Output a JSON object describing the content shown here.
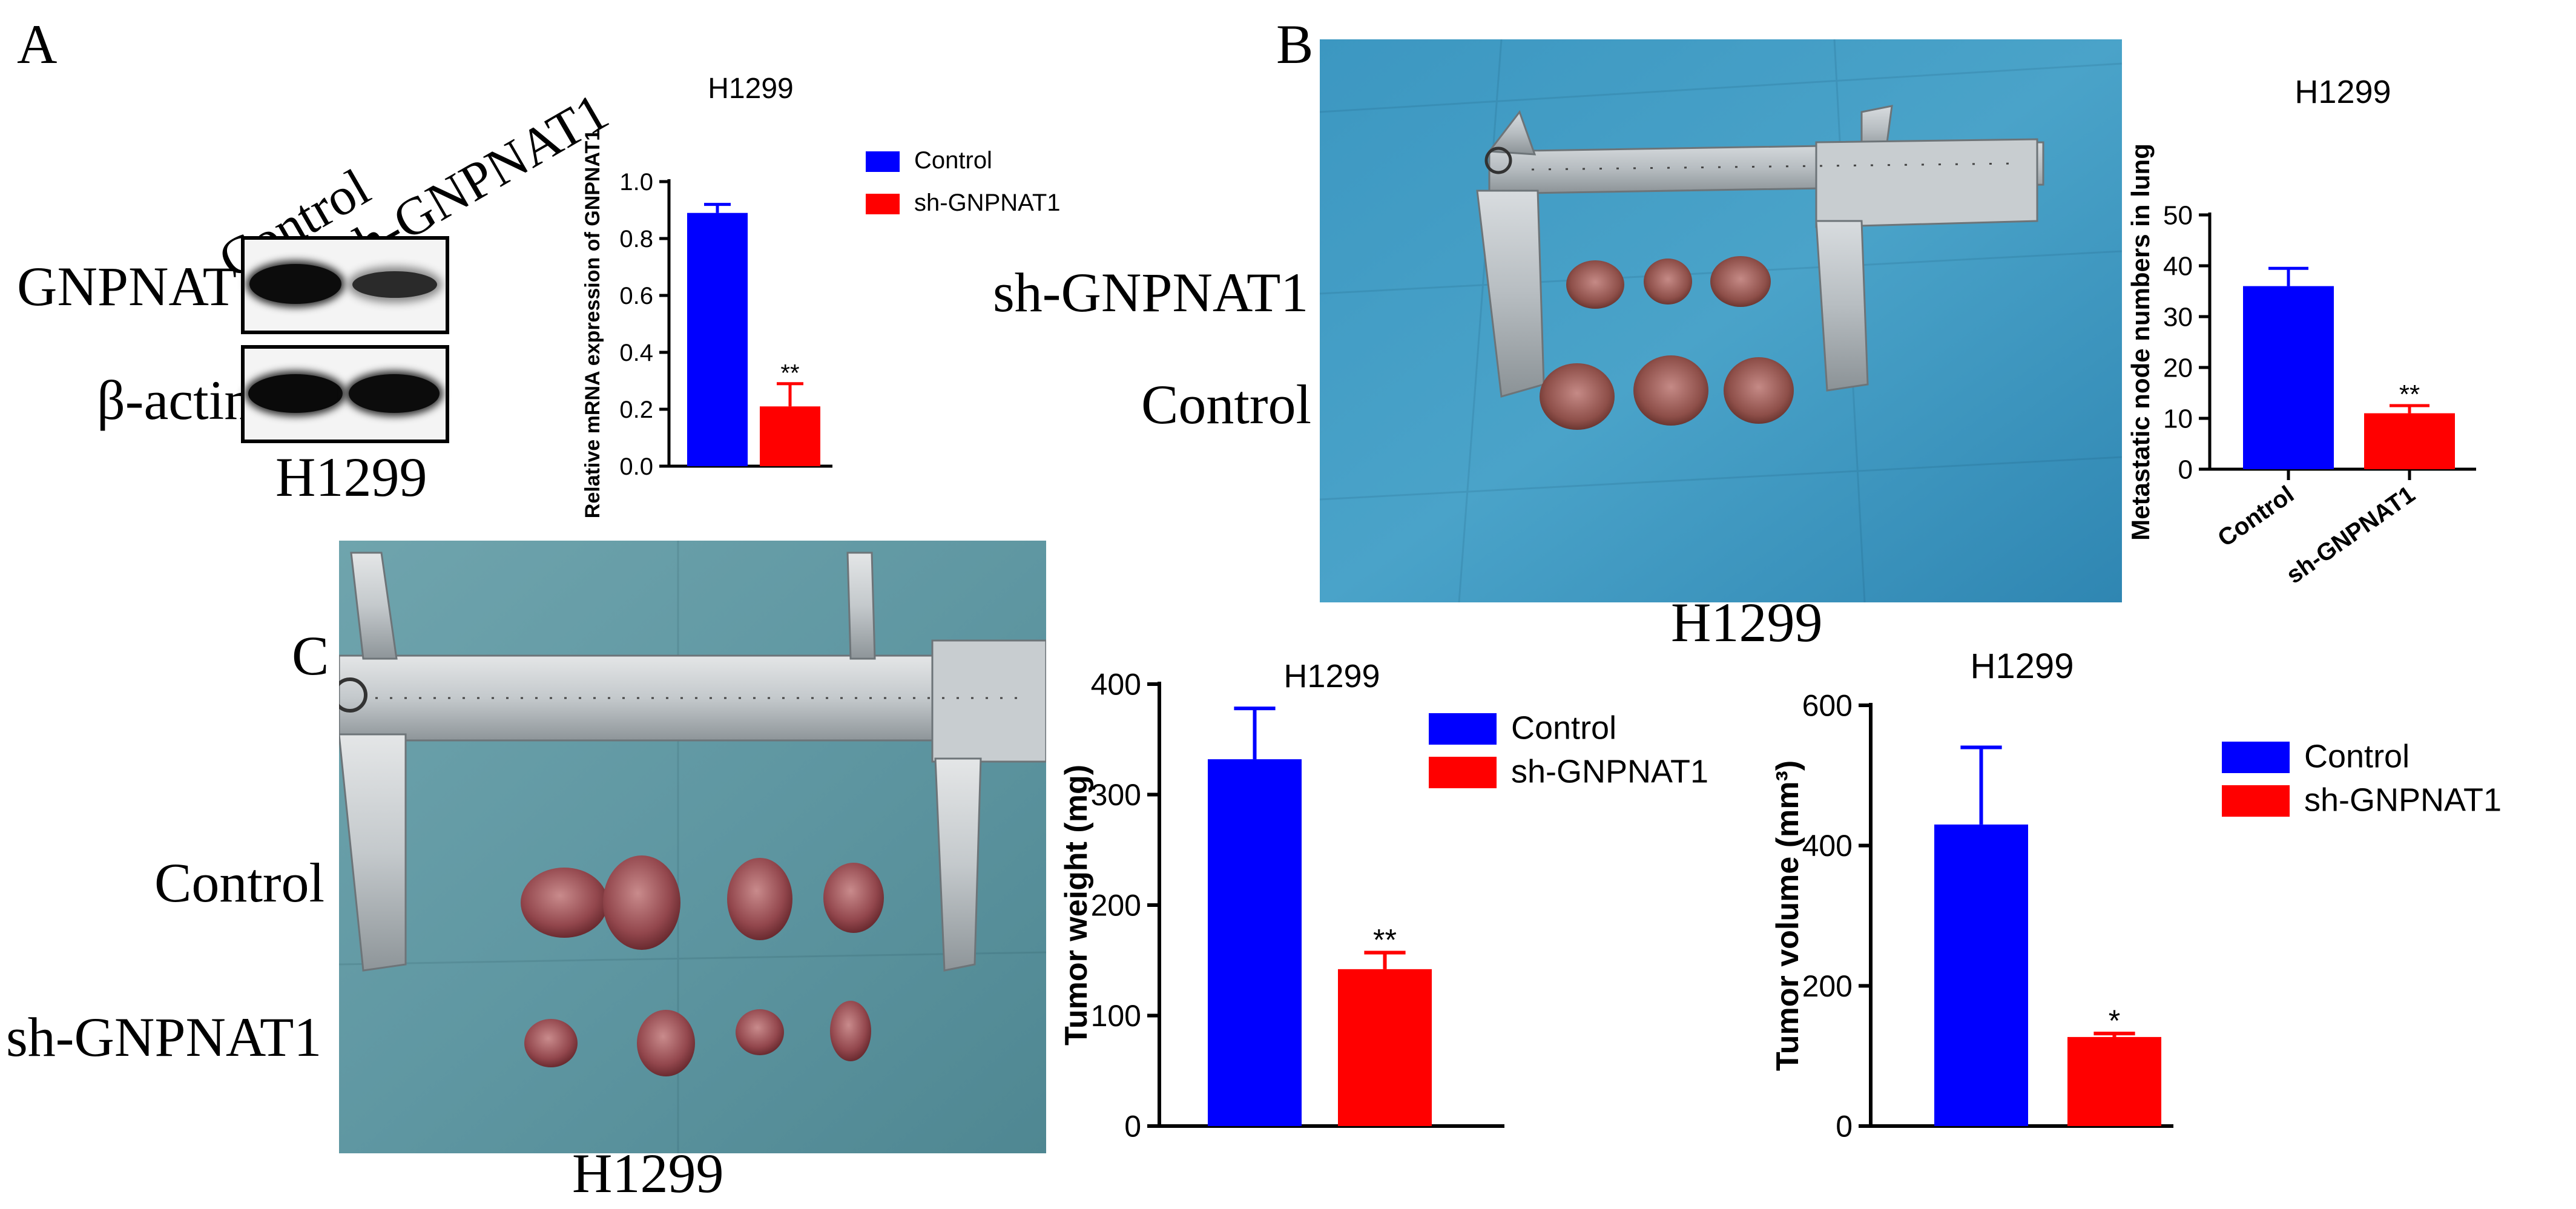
{
  "panels": {
    "a": "A",
    "b": "B",
    "c": "C"
  },
  "western_blot": {
    "lanes": [
      "Control",
      "sh-GNPNAT1"
    ],
    "rows": [
      "GNPNAT1",
      "β-actin"
    ],
    "cell_line": "H1299"
  },
  "lung_photo": {
    "rows": [
      "sh-GNPNAT1",
      "Control"
    ],
    "cell_line": "H1299"
  },
  "tumor_photo": {
    "rows": [
      "Control",
      "sh-GNPNAT1"
    ],
    "cell_line": "H1299"
  },
  "colors": {
    "control": "#0000FF",
    "sh": "#FF0000"
  },
  "chart_data": [
    {
      "id": "mrna",
      "type": "bar",
      "title": "H1299",
      "ylabel": "Relative mRNA expression of GNPNAT1",
      "categories": [
        "Control",
        "sh-GNPNAT1"
      ],
      "values": [
        0.89,
        0.21
      ],
      "errors": [
        0.03,
        0.08
      ],
      "ylim": [
        0,
        1.0
      ],
      "yticks": [
        "0.0",
        "0.2",
        "0.4",
        "0.6",
        "0.8",
        "1.0"
      ],
      "significance": [
        "",
        "**"
      ],
      "legend": [
        "Control",
        "sh-GNPNAT1"
      ],
      "legend_position": "right"
    },
    {
      "id": "nodes",
      "type": "bar",
      "title": "H1299",
      "ylabel": "Metastatic node numbers in lung",
      "categories": [
        "Control",
        "sh-GNPNAT1"
      ],
      "values": [
        36,
        11
      ],
      "errors": [
        3.5,
        1.5
      ],
      "ylim": [
        0,
        50
      ],
      "yticks": [
        "0",
        "10",
        "20",
        "30",
        "40",
        "50"
      ],
      "significance": [
        "",
        "**"
      ]
    },
    {
      "id": "weight",
      "type": "bar",
      "title": "H1299",
      "ylabel": "Tumor weight (mg)",
      "categories": [
        "Control",
        "sh-GNPNAT1"
      ],
      "values": [
        332,
        142
      ],
      "errors": [
        46,
        15
      ],
      "ylim": [
        0,
        400
      ],
      "yticks": [
        "0",
        "100",
        "200",
        "300",
        "400"
      ],
      "significance": [
        "",
        "**"
      ],
      "legend": [
        "Control",
        "sh-GNPNAT1"
      ],
      "legend_position": "top-right"
    },
    {
      "id": "volume",
      "type": "bar",
      "title": "H1299",
      "ylabel": "Tumor volume (mm³)",
      "categories": [
        "Control",
        "sh-GNPNAT1"
      ],
      "values": [
        430,
        127
      ],
      "errors": [
        110,
        5
      ],
      "ylim": [
        0,
        600
      ],
      "yticks": [
        "0",
        "200",
        "400",
        "600"
      ],
      "significance": [
        "",
        "*"
      ],
      "legend": [
        "Control",
        "sh-GNPNAT1"
      ],
      "legend_position": "top-right"
    }
  ]
}
